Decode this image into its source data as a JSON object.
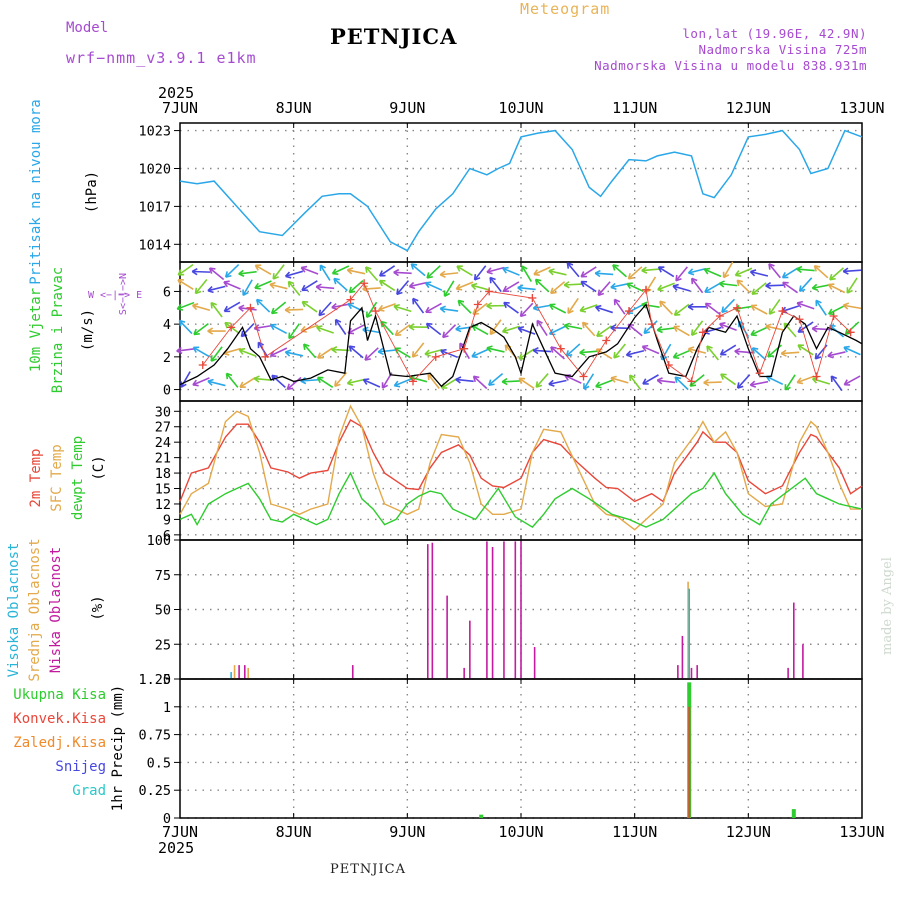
{
  "header": {
    "model_label": "Model",
    "model_name": "wrf−nmm_v3.9.1 e1km",
    "station": "PETNJICA",
    "product": "Meteogram",
    "lonlat": "lon,lat (19.96E, 42.9N)",
    "elevation": "Nadmorska Visina 725m",
    "model_elevation": "Nadmorska Visina u modelu 838.931m",
    "footer_station": "PETNJICA",
    "credit": "made by Angel"
  },
  "colors": {
    "pressure": "#2aa7e8",
    "t2m": "#e8473a",
    "sfc": "#e3a94a",
    "dewpt": "#2ecc2e",
    "high_cloud": "#2ab5d8",
    "mid_cloud": "#e3a94a",
    "low_cloud": "#c21b9f",
    "total_rain": "#2ecc2e",
    "conv_rain": "#e8473a",
    "frz_rain": "#f08a2a",
    "snow": "#4848e0",
    "graupel": "#2ac8c8",
    "wind_line": "#000000",
    "gust_marker": "#e8473a",
    "label_purple": "#a64bd0"
  },
  "chart_data": [
    {
      "id": "pressure",
      "type": "line",
      "ylabel": "Pritisak na nivou mora",
      "unit": "(hPa)",
      "yticks": [
        1014,
        1017,
        1020,
        1023
      ],
      "ylim": [
        1012.6,
        1023.6
      ],
      "grid": true,
      "series": [
        {
          "name": "Pritisak na nivou mora",
          "x": [
            0,
            0.15,
            0.3,
            0.5,
            0.7,
            0.9,
            1.1,
            1.25,
            1.4,
            1.5,
            1.65,
            1.85,
            2.0,
            2.1,
            2.25,
            2.4,
            2.55,
            2.7,
            2.8,
            2.9,
            3.0,
            3.15,
            3.3,
            3.45,
            3.6,
            3.7,
            3.8,
            3.95,
            4.1,
            4.2,
            4.35,
            4.5,
            4.6,
            4.7,
            4.85,
            5.0,
            5.15,
            5.3,
            5.45,
            5.55,
            5.7,
            5.85,
            6.0
          ],
          "y": [
            1019,
            1018.8,
            1019,
            1017,
            1015,
            1014.7,
            1016.5,
            1017.8,
            1018,
            1018,
            1017,
            1014.2,
            1013.5,
            1015,
            1016.8,
            1018,
            1020,
            1019.5,
            1020,
            1020.4,
            1022.5,
            1022.8,
            1023,
            1021.5,
            1018.5,
            1017.8,
            1019,
            1020.7,
            1020.6,
            1021,
            1021.3,
            1021,
            1018,
            1017.7,
            1019.5,
            1022.5,
            1022.7,
            1023,
            1021.5,
            1019.6,
            1020,
            1023,
            1022.5
          ]
        }
      ]
    },
    {
      "id": "wind",
      "type": "line",
      "ylabel": "10m Vjetar Brzina i Pravac",
      "unit": "(m/s)",
      "compass": [
        "N",
        "S",
        "W",
        "E"
      ],
      "yticks": [
        0,
        2,
        4,
        6
      ],
      "ylim": [
        -0.7,
        7.8
      ],
      "grid": true,
      "series": [
        {
          "name": "Brzina",
          "x": [
            0,
            0.15,
            0.3,
            0.42,
            0.55,
            0.62,
            0.7,
            0.8,
            0.9,
            1.0,
            1.15,
            1.3,
            1.45,
            1.5,
            1.6,
            1.65,
            1.72,
            1.85,
            2.0,
            2.2,
            2.3,
            2.4,
            2.55,
            2.65,
            2.75,
            2.85,
            2.95,
            3.0,
            3.1,
            3.2,
            3.3,
            3.45,
            3.6,
            3.75,
            3.85,
            4.0,
            4.1,
            4.2,
            4.3,
            4.45,
            4.55,
            4.65,
            4.8,
            4.9,
            5.0,
            5.1,
            5.2,
            5.3,
            5.4,
            5.5,
            5.6,
            5.7,
            5.8,
            5.95,
            6.0
          ],
          "y": [
            0.3,
            0.8,
            1.5,
            2.5,
            3.8,
            2.5,
            2.0,
            0.6,
            0.8,
            0.5,
            0.7,
            1.2,
            1.0,
            4.2,
            5.0,
            3.0,
            4.5,
            0.9,
            0.8,
            1.0,
            0.2,
            0.8,
            3.8,
            4.1,
            3.7,
            3.2,
            2.0,
            1.0,
            4.0,
            2.5,
            1.0,
            0.8,
            2.0,
            2.3,
            2.8,
            4.4,
            5.2,
            3.0,
            1.0,
            0.8,
            2.5,
            3.8,
            3.5,
            4.5,
            2.5,
            0.8,
            0.8,
            3.5,
            4.5,
            4.0,
            2.5,
            3.8,
            3.5,
            3.0,
            2.8
          ]
        },
        {
          "name": "Udari",
          "x": [
            0.2,
            0.45,
            0.62,
            0.75,
            1.5,
            1.62,
            1.72,
            2.05,
            2.25,
            2.5,
            2.62,
            2.72,
            3.1,
            3.35,
            3.55,
            3.75,
            3.95,
            4.1,
            4.15,
            4.3,
            4.5,
            4.6,
            4.75,
            4.9,
            5.1,
            5.3,
            5.45,
            5.6,
            5.75,
            5.9
          ],
          "y": [
            1.5,
            3.8,
            5.0,
            2.0,
            5.5,
            6.5,
            4.8,
            0.5,
            2.0,
            2.5,
            5.2,
            6.0,
            5.6,
            2.5,
            0.8,
            3.0,
            4.8,
            6.1,
            4.0,
            1.5,
            0.5,
            3.5,
            4.5,
            5.0,
            1.0,
            4.8,
            4.3,
            0.8,
            4.5,
            3.5
          ]
        }
      ]
    },
    {
      "id": "temperature",
      "type": "line",
      "ylabel": "2m Temp / SFC Temp / dewpt Temp",
      "unit": "(C)",
      "yticks": [
        6,
        9,
        12,
        15,
        18,
        21,
        24,
        27,
        30
      ],
      "ylim": [
        5,
        32
      ],
      "grid": true,
      "series": [
        {
          "name": "2m Temp",
          "x": [
            0,
            0.1,
            0.25,
            0.4,
            0.5,
            0.6,
            0.7,
            0.8,
            0.95,
            1.05,
            1.15,
            1.3,
            1.4,
            1.5,
            1.6,
            1.7,
            1.8,
            1.9,
            2.0,
            2.1,
            2.2,
            2.3,
            2.45,
            2.55,
            2.65,
            2.75,
            2.85,
            3.0,
            3.1,
            3.2,
            3.35,
            3.5,
            3.65,
            3.75,
            3.85,
            4.0,
            4.15,
            4.25,
            4.35,
            4.55,
            4.6,
            4.7,
            4.8,
            4.9,
            5.0,
            5.15,
            5.3,
            5.45,
            5.55,
            5.6,
            5.7,
            5.8,
            5.9,
            6.0
          ],
          "y": [
            12.5,
            18,
            19,
            25,
            27.5,
            27.5,
            24,
            19,
            18.2,
            17,
            18,
            18.5,
            24,
            28.3,
            27,
            22,
            18,
            16.5,
            15,
            14.8,
            19,
            22,
            23.5,
            21.5,
            17,
            15.5,
            15.2,
            17,
            22,
            24.5,
            23.5,
            20,
            17,
            15.2,
            15,
            12.5,
            14,
            12.5,
            18,
            24,
            26,
            24,
            24,
            22,
            16.5,
            14,
            15.5,
            22,
            25.5,
            25,
            22,
            19,
            14,
            15.5
          ]
        },
        {
          "name": "SFC Temp",
          "x": [
            0,
            0.1,
            0.25,
            0.4,
            0.5,
            0.6,
            0.7,
            0.8,
            0.95,
            1.05,
            1.15,
            1.3,
            1.4,
            1.5,
            1.6,
            1.7,
            1.8,
            1.9,
            2.0,
            2.1,
            2.2,
            2.3,
            2.45,
            2.55,
            2.65,
            2.75,
            2.85,
            3.0,
            3.1,
            3.2,
            3.35,
            3.5,
            3.65,
            3.75,
            3.85,
            4.0,
            4.15,
            4.25,
            4.35,
            4.55,
            4.6,
            4.7,
            4.8,
            4.9,
            5.0,
            5.15,
            5.3,
            5.45,
            5.55,
            5.6,
            5.7,
            5.8,
            5.9,
            6.0
          ],
          "y": [
            10,
            14,
            16,
            28,
            30,
            29,
            22,
            12,
            11,
            10,
            11,
            12,
            25,
            31,
            27,
            18,
            12,
            11,
            10,
            11,
            20,
            25.5,
            25,
            20,
            12,
            10,
            10,
            11,
            22,
            26.5,
            26,
            19,
            12,
            10,
            9.5,
            7,
            10,
            12,
            20,
            26,
            28,
            24,
            26,
            22,
            14,
            11.5,
            12,
            24,
            28,
            27,
            22,
            16,
            11,
            11
          ]
        },
        {
          "name": "dewpt Temp",
          "x": [
            0,
            0.1,
            0.15,
            0.25,
            0.4,
            0.5,
            0.6,
            0.7,
            0.8,
            0.9,
            1.0,
            1.1,
            1.2,
            1.3,
            1.4,
            1.5,
            1.6,
            1.7,
            1.8,
            1.9,
            2.0,
            2.1,
            2.2,
            2.3,
            2.4,
            2.5,
            2.6,
            2.7,
            2.8,
            2.95,
            3.1,
            3.2,
            3.3,
            3.45,
            3.6,
            3.7,
            3.8,
            3.95,
            4.1,
            4.25,
            4.4,
            4.5,
            4.6,
            4.7,
            4.8,
            4.95,
            5.1,
            5.2,
            5.35,
            5.5,
            5.6,
            5.7,
            5.8,
            6.0
          ],
          "y": [
            9,
            10,
            8,
            12,
            14,
            15,
            16,
            13,
            9,
            8.5,
            10,
            9,
            8,
            9,
            14,
            18,
            13,
            11,
            8,
            9,
            12,
            13.5,
            14.5,
            14,
            11,
            10,
            9,
            12,
            15,
            9.5,
            7.5,
            10,
            13,
            15,
            13,
            11.5,
            10,
            9,
            7.5,
            9,
            12,
            14,
            15,
            18,
            14,
            10,
            8,
            12,
            14.5,
            17,
            14,
            13,
            12,
            11
          ]
        }
      ]
    },
    {
      "id": "clouds",
      "type": "bar",
      "ylabel": "Visoka Oblacnost / Srednja Oblacnost / Niska Oblacnost",
      "unit": "(%)",
      "yticks": [
        0,
        25,
        50,
        75,
        100
      ],
      "ylim": [
        0,
        100
      ],
      "grid": true,
      "series": [
        {
          "name": "Niska Oblacnost",
          "x": [
            0.52,
            0.57,
            1.52,
            2.18,
            2.22,
            2.35,
            2.5,
            2.55,
            2.7,
            2.75,
            2.85,
            2.95,
            3.0,
            3.12,
            4.38,
            4.42,
            4.5,
            4.55,
            5.35,
            5.4,
            5.48
          ],
          "y": [
            10,
            10,
            10,
            97,
            98,
            60,
            8,
            42,
            99,
            95,
            99,
            99,
            99,
            23,
            10,
            31,
            8,
            10,
            8,
            55,
            25
          ]
        },
        {
          "name": "Srednja Oblacnost",
          "x": [
            0.48,
            0.6,
            4.47
          ],
          "y": [
            10,
            8,
            70
          ]
        },
        {
          "name": "Visoka Oblacnost",
          "x": [
            0.45,
            4.48
          ],
          "y": [
            5,
            65
          ]
        }
      ]
    },
    {
      "id": "precip",
      "type": "bar",
      "ylabel": "1hr Precip",
      "unit": "(mm)",
      "yticks": [
        0,
        0.25,
        0.5,
        0.75,
        1,
        1.25
      ],
      "ylim": [
        0,
        1.25
      ],
      "grid": true,
      "legend": [
        "Ukupna Kisa",
        "Konvek.Kisa",
        "Zaledj.Kisa",
        "Snijeg",
        "Grad"
      ],
      "series": [
        {
          "name": "Ukupna Kisa",
          "x": [
            2.65,
            4.48,
            5.4
          ],
          "y": [
            0.03,
            1.22,
            0.08
          ]
        },
        {
          "name": "Konvek.Kisa",
          "x": [
            4.48
          ],
          "y": [
            1.0
          ]
        }
      ]
    }
  ],
  "time_axis": {
    "year": "2025",
    "labels": [
      "7JUN",
      "8JUN",
      "9JUN",
      "10JUN",
      "11JUN",
      "12JUN",
      "13JUN"
    ]
  }
}
